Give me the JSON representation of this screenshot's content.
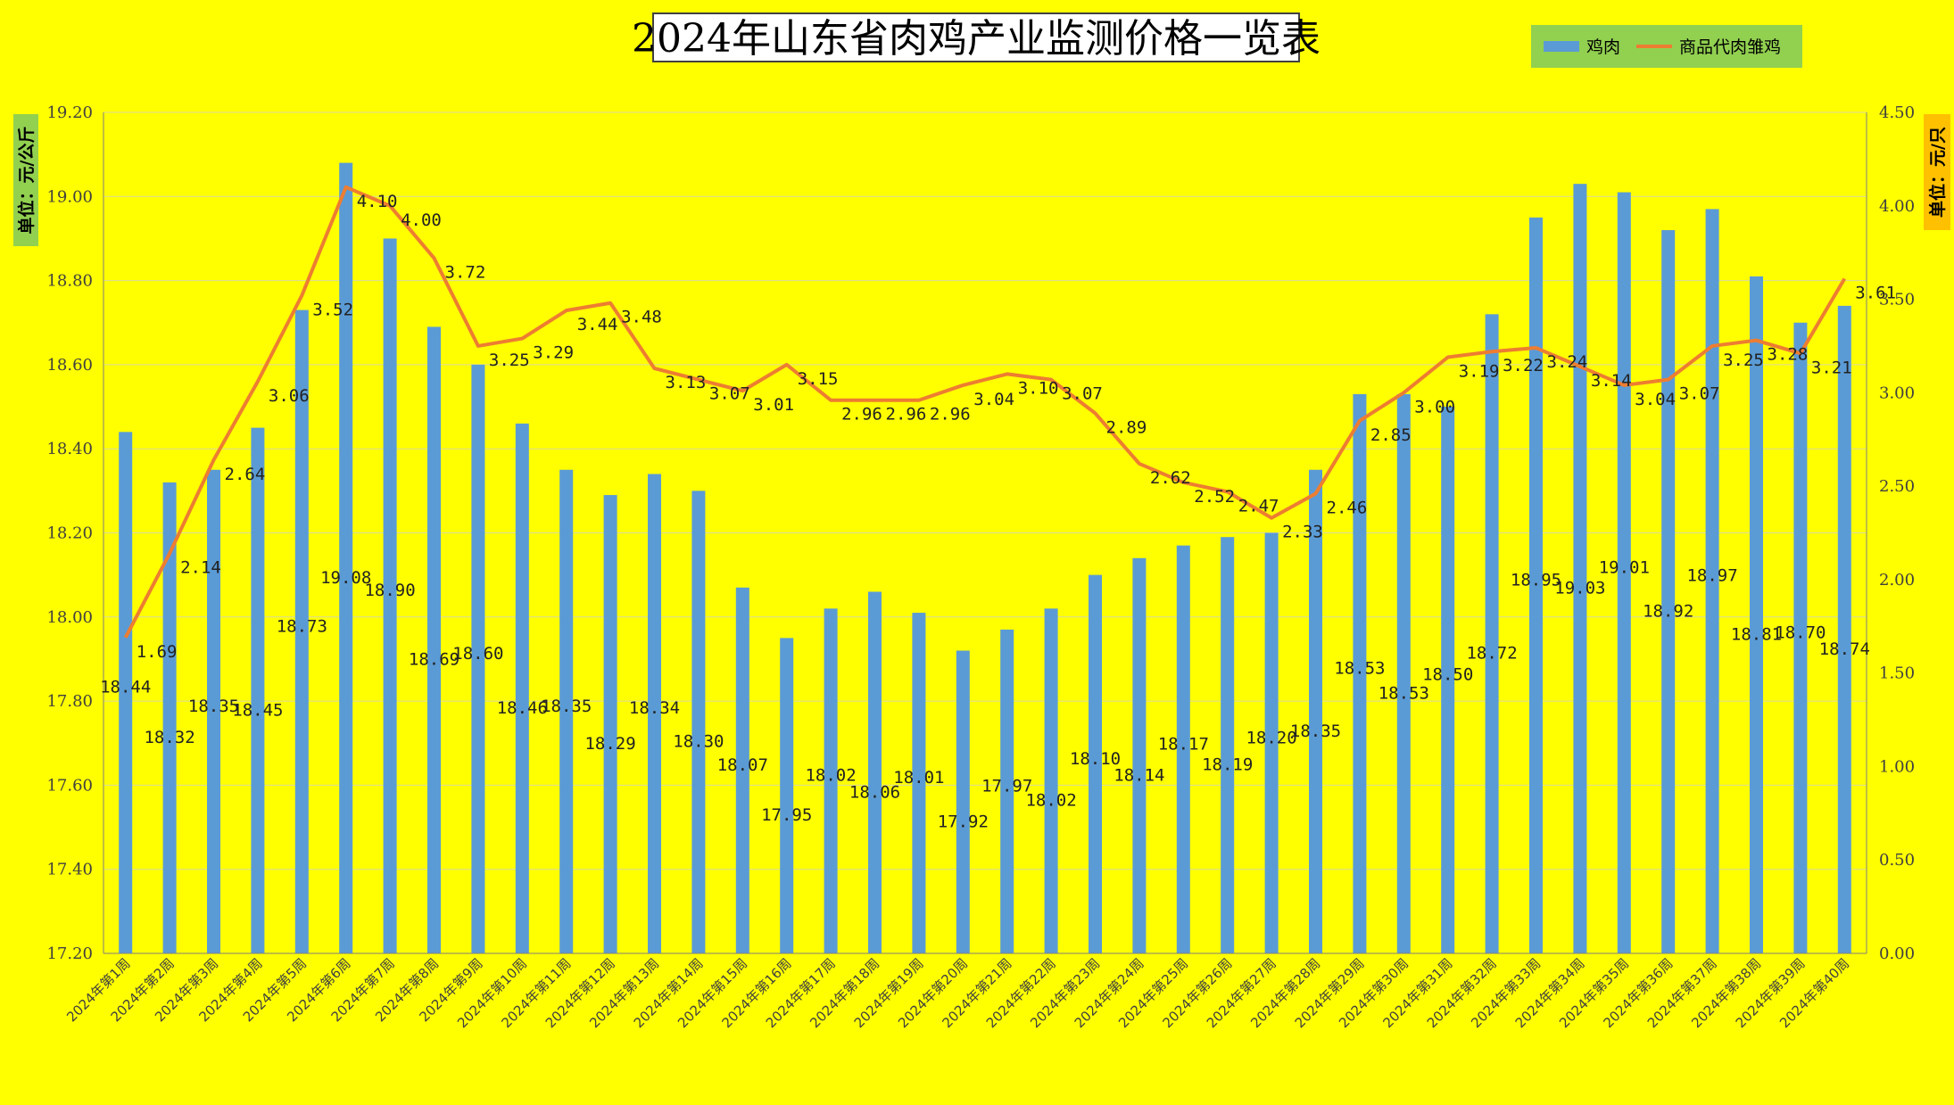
{
  "colors": {
    "background": "#ffff00",
    "bar": "#5b9bd5",
    "line": "#ed7d31",
    "legend_bg": "#92d050",
    "left_unit_bg": "#92d050",
    "right_unit_bg": "#ffc000"
  },
  "chart_data": {
    "type": "bar+line",
    "title": "2024年山东省肉鸡产业监测价格一览表",
    "legend_position": "top-right",
    "grid": true,
    "categories": [
      "2024年第1周",
      "2024年第2周",
      "2024年第3周",
      "2024年第4周",
      "2024年第5周",
      "2024年第6周",
      "2024年第7周",
      "2024年第8周",
      "2024年第9周",
      "2024年第10周",
      "2024年第11周",
      "2024年第12周",
      "2024年第13周",
      "2024年第14周",
      "2024年第15周",
      "2024年第16周",
      "2024年第17周",
      "2024年第18周",
      "2024年第19周",
      "2024年第20周",
      "2024年第21周",
      "2024年第22周",
      "2024年第23周",
      "2024年第24周",
      "2024年第25周",
      "2024年第26周",
      "2024年第27周",
      "2024年第28周",
      "2024年第29周",
      "2024年第30周",
      "2024年第31周",
      "2024年第32周",
      "2024年第33周",
      "2024年第34周",
      "2024年第35周",
      "2024年第36周",
      "2024年第37周",
      "2024年第38周",
      "2024年第39周",
      "2024年第40周"
    ],
    "left_axis": {
      "label": "单位：元/公斤",
      "min": 17.2,
      "max": 19.2,
      "step": 0.2,
      "ticks": [
        "17.20",
        "17.40",
        "17.60",
        "17.80",
        "18.00",
        "18.20",
        "18.40",
        "18.60",
        "18.80",
        "19.00",
        "19.20"
      ]
    },
    "right_axis": {
      "label": "单位：元/只",
      "min": 0,
      "max": 4.5,
      "step": 0.5,
      "ticks": [
        "0.00",
        "0.50",
        "1.00",
        "1.50",
        "2.00",
        "2.50",
        "3.00",
        "3.50",
        "4.00",
        "4.50"
      ]
    },
    "series": [
      {
        "name": "鸡肉",
        "kind": "bar",
        "axis": "left",
        "values": [
          18.44,
          18.32,
          18.35,
          18.45,
          18.73,
          19.08,
          18.9,
          18.69,
          18.6,
          18.46,
          18.35,
          18.29,
          18.34,
          18.3,
          18.07,
          17.95,
          18.02,
          18.06,
          18.01,
          17.92,
          17.97,
          18.02,
          18.1,
          18.14,
          18.17,
          18.19,
          18.2,
          18.35,
          18.53,
          18.53,
          18.5,
          18.72,
          18.95,
          19.03,
          19.01,
          18.92,
          18.97,
          18.81,
          18.7,
          18.74
        ],
        "labels": [
          "18.44",
          "18.32",
          "18.35",
          "18.45",
          "18.73",
          "19.08",
          "18.90",
          "18.69",
          "18.60",
          "18.46",
          "18.35",
          "18.29",
          "18.34",
          "18.30",
          "18.07",
          "17.95",
          "18.02",
          "18.06",
          "18.01",
          "17.92",
          "17.97",
          "18.02",
          "18.10",
          "18.14",
          "18.17",
          "18.19",
          "18.20",
          "18.35",
          "18.53",
          "18.53",
          "18.50",
          "18.72",
          "18.95",
          "19.03",
          "19.01",
          "18.92",
          "18.97",
          "18.81",
          "18.70",
          "18.74"
        ]
      },
      {
        "name": "商品代肉雏鸡",
        "kind": "line",
        "axis": "right",
        "values": [
          1.69,
          2.14,
          2.64,
          3.06,
          3.52,
          4.1,
          4.0,
          3.72,
          3.25,
          3.29,
          3.44,
          3.48,
          3.13,
          3.07,
          3.01,
          3.15,
          2.96,
          2.96,
          2.96,
          3.04,
          3.1,
          3.07,
          2.89,
          2.62,
          2.52,
          2.47,
          2.33,
          2.46,
          2.85,
          3.0,
          3.19,
          3.22,
          3.24,
          3.14,
          3.04,
          3.07,
          3.25,
          3.28,
          3.21,
          3.61
        ],
        "labels": [
          "1.69",
          "2.14",
          "2.64",
          "3.06",
          "3.52",
          "4.10",
          "4.00",
          "3.72",
          "3.25",
          "3.29",
          "3.44",
          "3.48",
          "3.13",
          "3.07",
          "3.01",
          "3.15",
          "2.96",
          "2.96",
          "2.96",
          "3.04",
          "3.10",
          "3.07",
          "2.89",
          "2.62",
          "2.52",
          "2.47",
          "2.33",
          "2.46",
          "2.85",
          "3.00",
          "3.19",
          "3.22",
          "3.24",
          "3.14",
          "3.04",
          "3.07",
          "3.25",
          "3.28",
          "3.21",
          "3.61"
        ]
      }
    ]
  }
}
